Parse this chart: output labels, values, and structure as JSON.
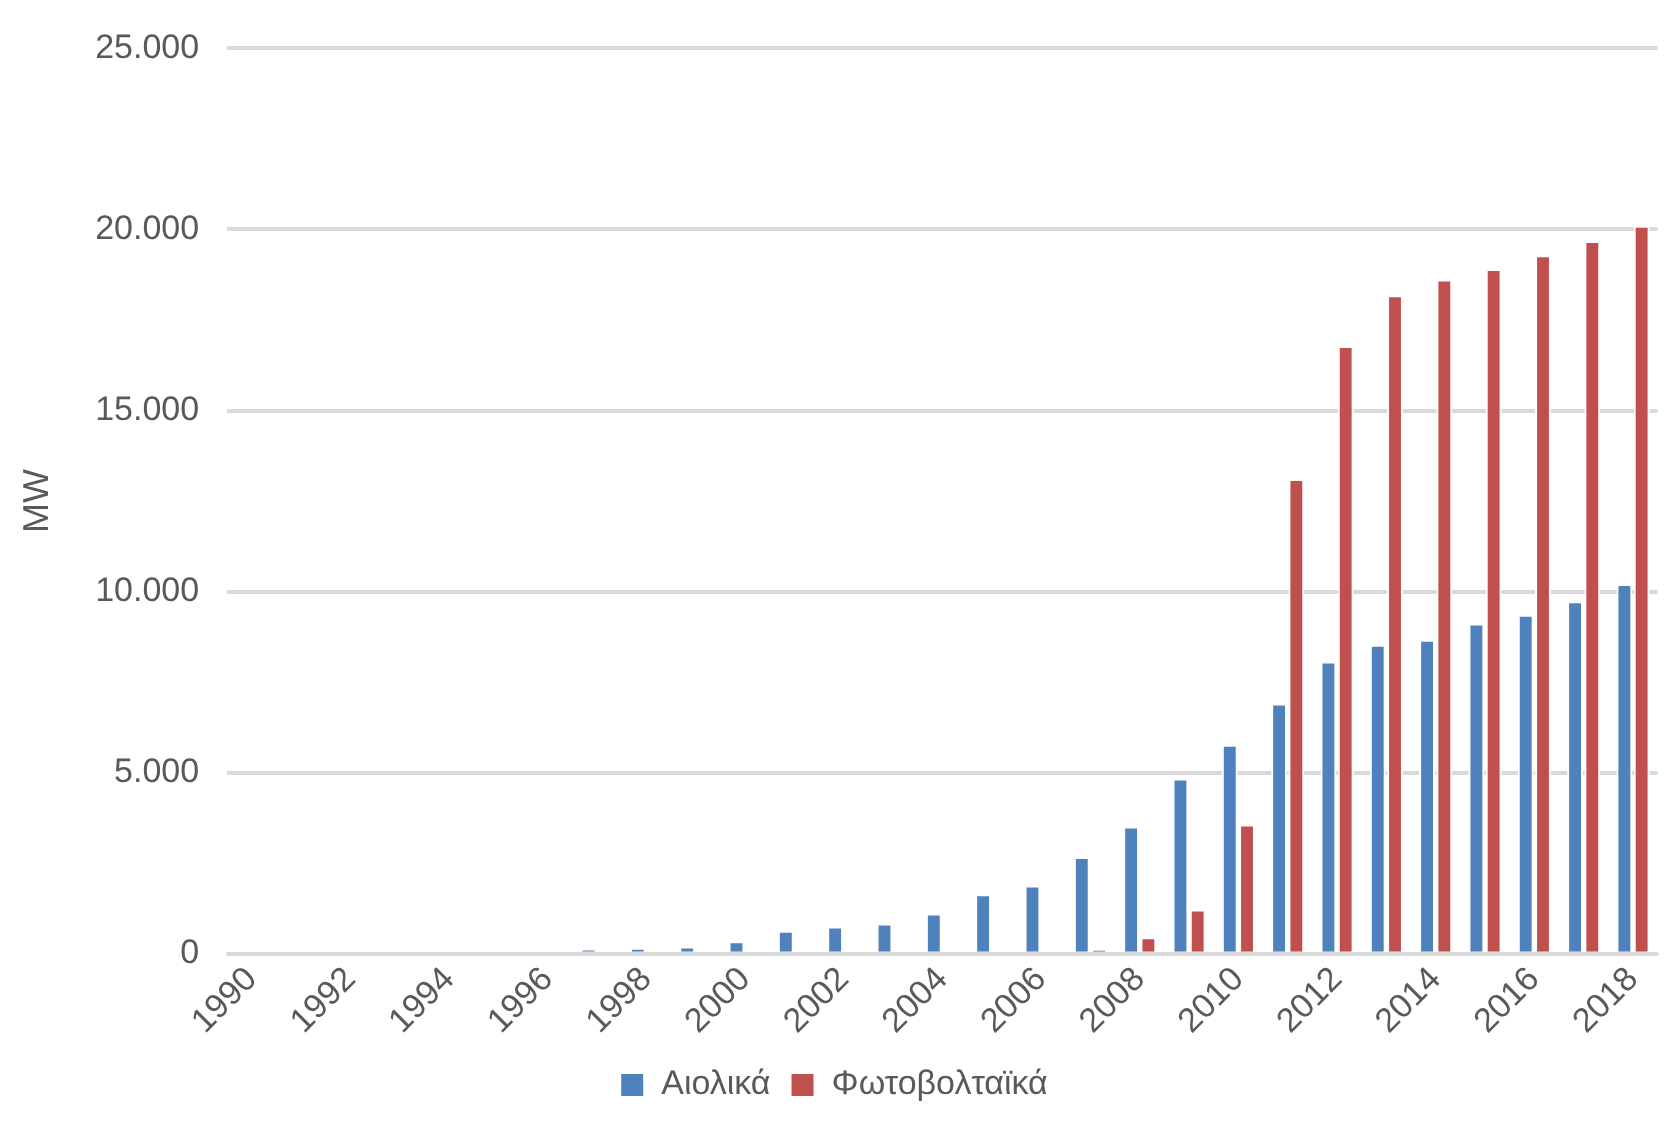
{
  "chart_data": {
    "type": "bar",
    "ylabel": "MW",
    "categories": [
      "1990",
      null,
      "1992",
      null,
      "1994",
      null,
      "1996",
      null,
      "1998",
      null,
      "2000",
      null,
      "2002",
      null,
      "2004",
      null,
      "2006",
      null,
      "2008",
      null,
      "2010",
      null,
      "2012",
      null,
      "2014",
      null,
      "2016",
      null,
      "2018"
    ],
    "series": [
      {
        "name": "Αιολικά",
        "color": "#4f81bd",
        "values": [
          0,
          0,
          0,
          0,
          0,
          0,
          null,
          120,
          160,
          200,
          340,
          630,
          750,
          830,
          1110,
          1640,
          1880,
          2670,
          3510,
          4840,
          5770,
          6910,
          8070,
          8530,
          8670,
          9120,
          9360,
          9730,
          10210
        ]
      },
      {
        "name": "Φωτοβολταϊκά",
        "color": "#c0504d",
        "values": [
          0,
          0,
          0,
          0,
          0,
          0,
          0,
          0,
          0,
          0,
          0,
          0,
          0,
          0,
          0,
          null,
          null,
          100,
          450,
          1220,
          3570,
          13110,
          16780,
          18180,
          18620,
          18910,
          19290,
          19680,
          20100
        ]
      }
    ],
    "ylim": [
      0,
      25000
    ],
    "yticks": [
      {
        "value": 0,
        "label": "0"
      },
      {
        "value": 5000,
        "label": "5.000"
      },
      {
        "value": 10000,
        "label": "10.000"
      },
      {
        "value": 15000,
        "label": "15.000"
      },
      {
        "value": 20000,
        "label": "20.000"
      },
      {
        "value": 25000,
        "label": "25.000"
      }
    ],
    "grid": "y",
    "legend": "bottom"
  }
}
